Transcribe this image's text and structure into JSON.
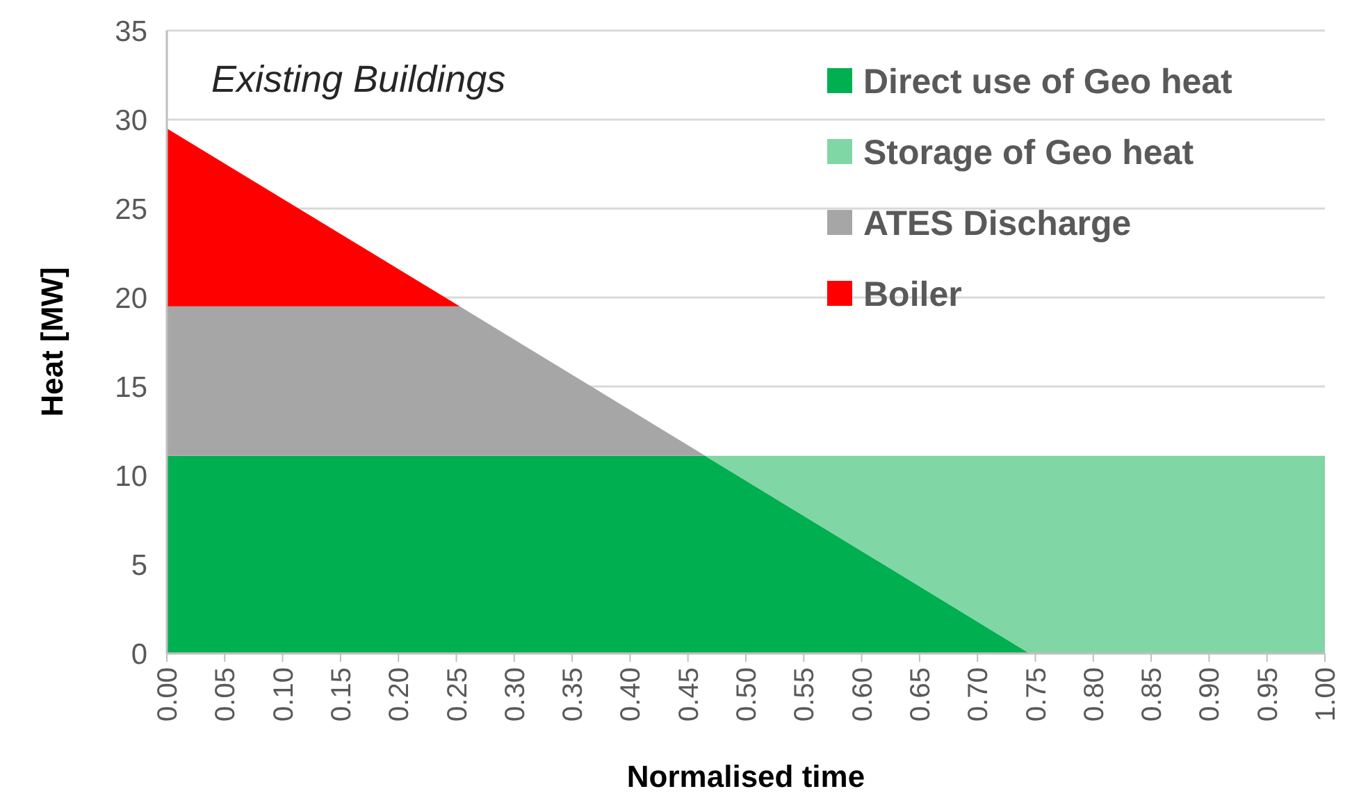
{
  "chart_data": {
    "type": "area",
    "stacked": true,
    "xlabel": "Normalised time",
    "ylabel": "Heat [MW]",
    "annotations": [
      "Existing Buildings"
    ],
    "x": [
      0,
      0.253,
      0.465,
      0.745,
      1.0
    ],
    "series": [
      {
        "name": "Direct use of Geo heat",
        "color": "#00b050",
        "values": [
          11.1,
          11.1,
          11.1,
          0,
          null
        ]
      },
      {
        "name": "Storage of Geo heat",
        "color": "#80d6a4",
        "values": [
          null,
          null,
          0,
          11.1,
          11.1
        ]
      },
      {
        "name": "ATES Discharge",
        "color": "#a6a6a6",
        "values": [
          8.4,
          8.4,
          0,
          null,
          null
        ]
      },
      {
        "name": "Boiler",
        "color": "#ff0000",
        "values": [
          10,
          0,
          null,
          null,
          null
        ]
      }
    ],
    "xlim": [
      0,
      1
    ],
    "ylim": [
      0,
      35
    ],
    "xticks": [
      {
        "value": 0,
        "label": "0.00"
      },
      {
        "value": 0.05,
        "label": "0.05"
      },
      {
        "value": 0.1,
        "label": "0.10"
      },
      {
        "value": 0.15,
        "label": "0.15"
      },
      {
        "value": 0.2,
        "label": "0.20"
      },
      {
        "value": 0.25,
        "label": "0.25"
      },
      {
        "value": 0.3,
        "label": "0.30"
      },
      {
        "value": 0.35,
        "label": "0.35"
      },
      {
        "value": 0.4,
        "label": "0.40"
      },
      {
        "value": 0.45,
        "label": "0.45"
      },
      {
        "value": 0.5,
        "label": "0.50"
      },
      {
        "value": 0.55,
        "label": "0.55"
      },
      {
        "value": 0.6,
        "label": "0.60"
      },
      {
        "value": 0.65,
        "label": "0.65"
      },
      {
        "value": 0.7,
        "label": "0.70"
      },
      {
        "value": 0.75,
        "label": "0.75"
      },
      {
        "value": 0.8,
        "label": "0.80"
      },
      {
        "value": 0.85,
        "label": "0.85"
      },
      {
        "value": 0.9,
        "label": "0.90"
      },
      {
        "value": 0.95,
        "label": "0.95"
      },
      {
        "value": 1.0,
        "label": "1.00"
      }
    ],
    "yticks": [
      0,
      5,
      10,
      15,
      20,
      25,
      30,
      35
    ],
    "grid": "y",
    "legend": "top right"
  }
}
